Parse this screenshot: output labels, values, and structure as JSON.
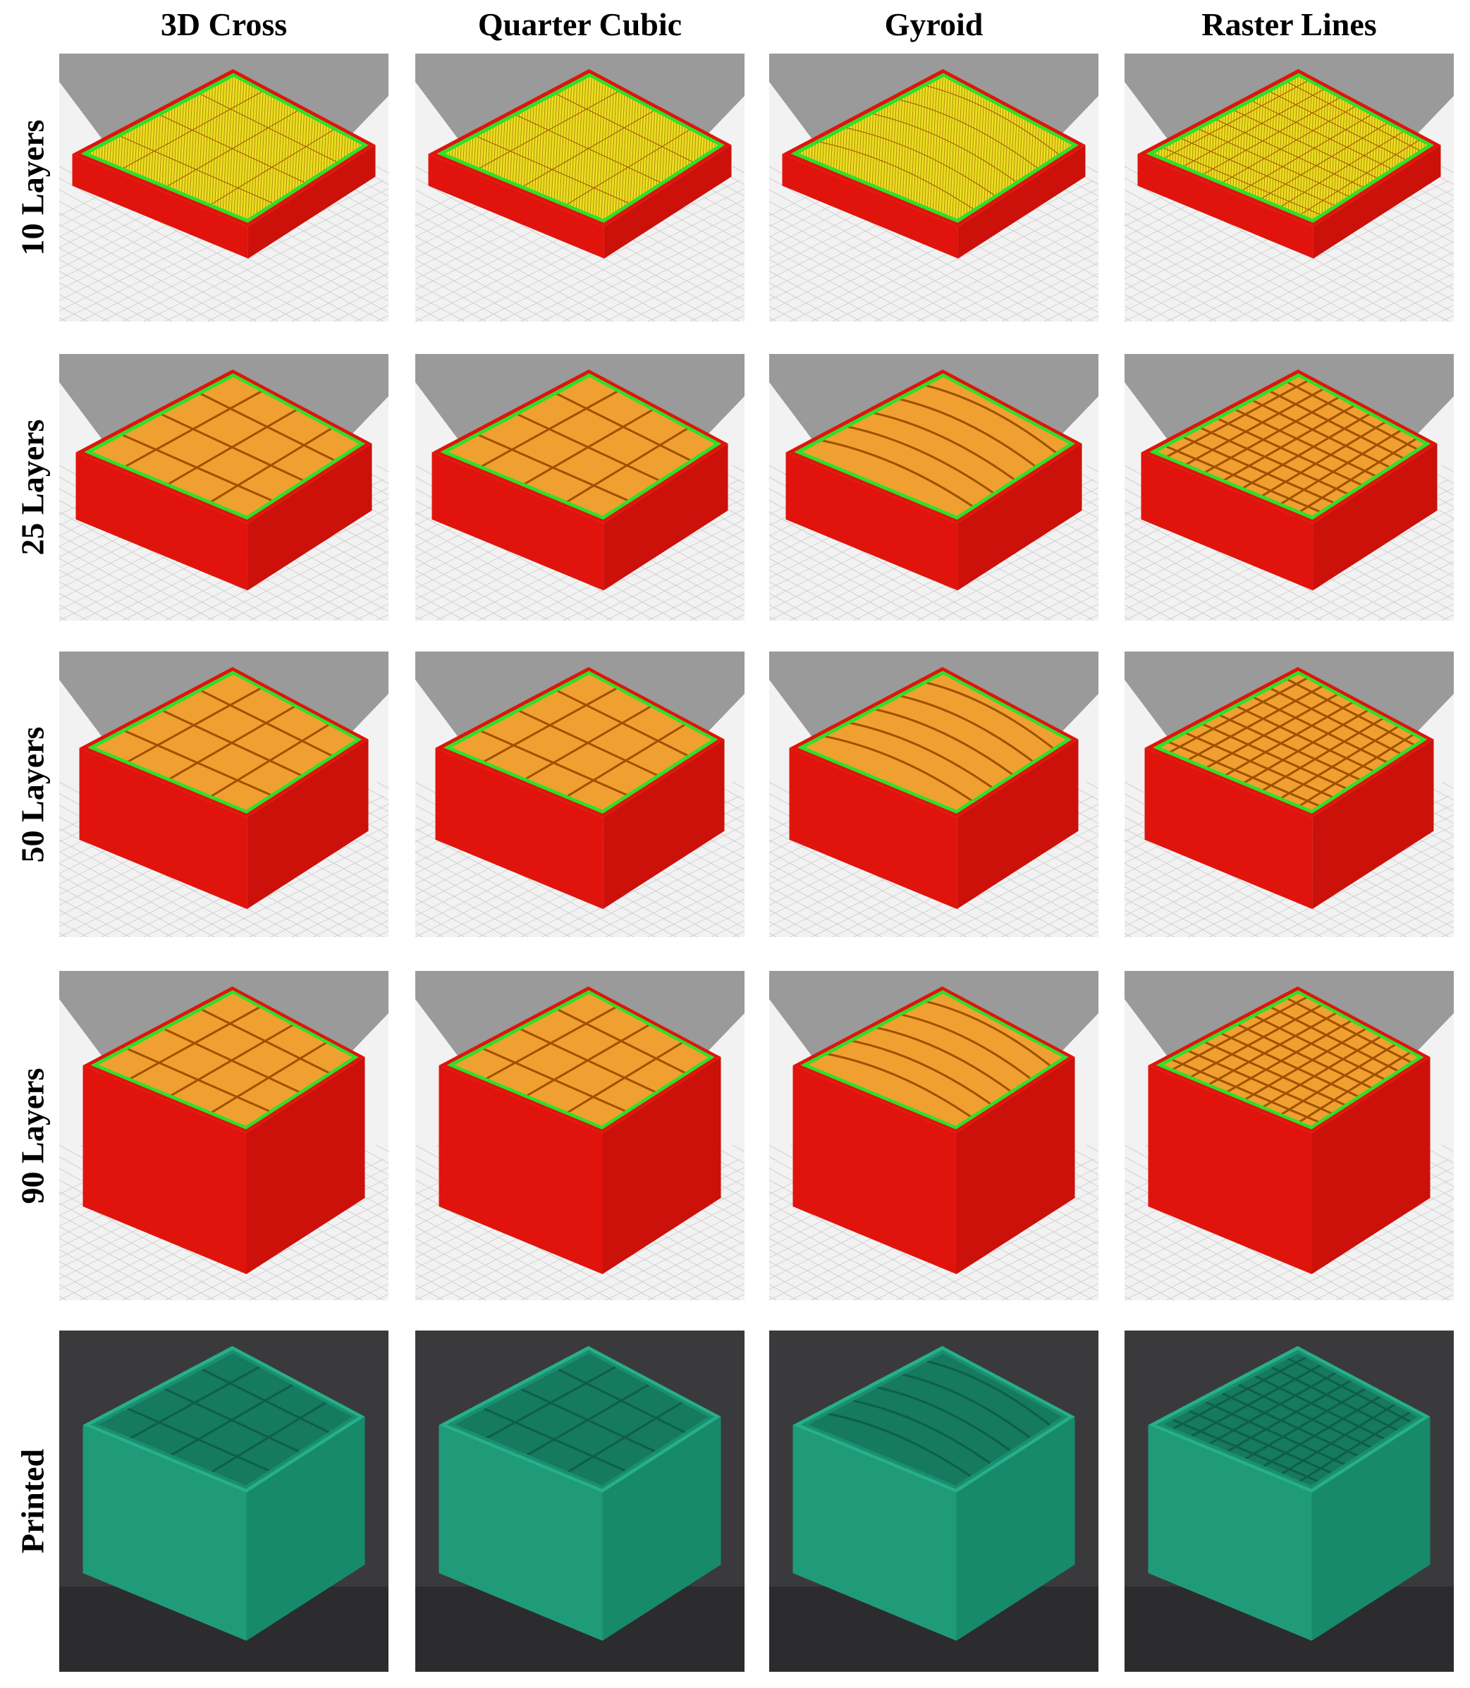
{
  "columns": [
    "3D Cross",
    "Quarter Cubic",
    "Gyroid",
    "Raster Lines"
  ],
  "rows": [
    "10 Layers",
    "25 Layers",
    "50 Layers",
    "90 Layers",
    "Printed"
  ]
}
